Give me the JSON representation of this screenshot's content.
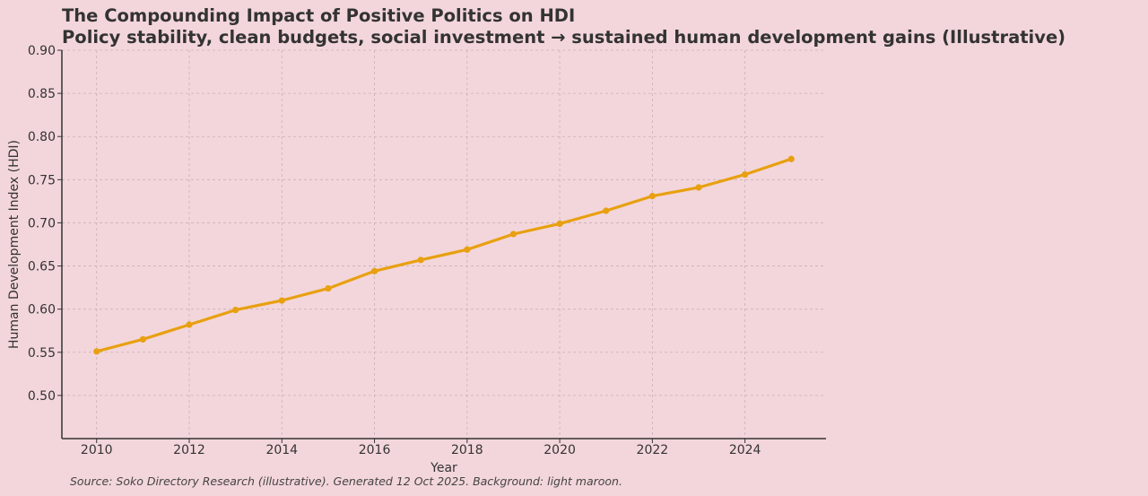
{
  "chart_data": {
    "type": "line",
    "title": "The Compounding Impact of Positive Politics on HDI",
    "subtitle": "Policy stability, clean budgets, social investment → sustained human development gains (Illustrative)",
    "xlabel": "Year",
    "ylabel": "Human Development Index (HDI)",
    "xlim": [
      2009.25,
      2025.75
    ],
    "ylim": [
      0.45,
      0.9
    ],
    "x_ticks": [
      2010,
      2012,
      2014,
      2016,
      2018,
      2020,
      2022,
      2024
    ],
    "x_tick_labels": [
      "2010",
      "2012",
      "2014",
      "2016",
      "2018",
      "2020",
      "2022",
      "2024"
    ],
    "y_ticks": [
      0.5,
      0.55,
      0.6,
      0.65,
      0.7,
      0.75,
      0.8,
      0.85,
      0.9
    ],
    "y_tick_labels": [
      "0.50",
      "0.55",
      "0.60",
      "0.65",
      "0.70",
      "0.75",
      "0.80",
      "0.85",
      "0.90"
    ],
    "grid": true,
    "legend": null,
    "series": [
      {
        "name": "HDI",
        "color": "#e8a010",
        "marker": "circle",
        "x": [
          2010,
          2011,
          2012,
          2013,
          2014,
          2015,
          2016,
          2017,
          2018,
          2019,
          2020,
          2021,
          2022,
          2023,
          2024,
          2025
        ],
        "values": [
          0.551,
          0.565,
          0.582,
          0.599,
          0.61,
          0.624,
          0.644,
          0.657,
          0.669,
          0.687,
          0.699,
          0.714,
          0.731,
          0.741,
          0.756,
          0.774
        ]
      }
    ]
  },
  "footer": {
    "source": "Source: Soko Directory Research (illustrative). Generated 12 Oct 2025. Background: light maroon."
  },
  "colors": {
    "background": "#f3d6db",
    "line": "#e8a010",
    "text": "#333333",
    "grid": "#c9b0b5"
  }
}
